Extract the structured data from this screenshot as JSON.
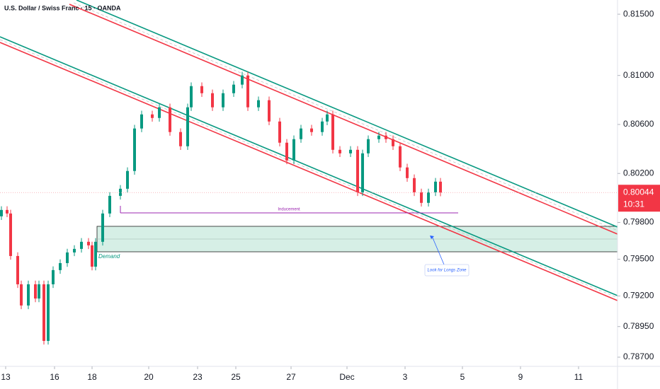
{
  "chart_data": {
    "type": "candlestick",
    "title": "U.S. Dollar / Swiss Franc · 15 · OANDA",
    "annotations": {
      "inducement": "Inducement",
      "demand": "Demand",
      "longs_zone": "Look for Longs Zone"
    },
    "last_price": 0.80044,
    "countdown": "10:31",
    "up_color": "#089981",
    "down_color": "#f23645",
    "xlim": [
      0,
      87.2
    ],
    "ylim": [
      0.78625,
      0.81616
    ],
    "xticks": [
      {
        "value": 0.8,
        "label": "13"
      },
      {
        "value": 7.7,
        "label": "16"
      },
      {
        "value": 13,
        "label": "18"
      },
      {
        "value": 21,
        "label": "20"
      },
      {
        "value": 27.9,
        "label": "23"
      },
      {
        "value": 33.3,
        "label": "25"
      },
      {
        "value": 41.1,
        "label": "27"
      },
      {
        "value": 49,
        "label": "Dec"
      },
      {
        "value": 57.2,
        "label": "3"
      },
      {
        "value": 65.3,
        "label": "5"
      },
      {
        "value": 73.5,
        "label": "9"
      },
      {
        "value": 81.7,
        "label": "11"
      }
    ],
    "yticks": [
      {
        "value": 0.815,
        "label": "0.81500"
      },
      {
        "value": 0.81,
        "label": "0.81000"
      },
      {
        "value": 0.806,
        "label": "0.80600"
      },
      {
        "value": 0.802,
        "label": "0.80200"
      },
      {
        "value": 0.798,
        "label": "0.79800"
      },
      {
        "value": 0.795,
        "label": "0.79500"
      },
      {
        "value": 0.792,
        "label": "0.79200"
      },
      {
        "value": 0.7895,
        "label": "0.78950"
      },
      {
        "value": 0.787,
        "label": "0.78700"
      }
    ],
    "x": [
      0.2,
      1.0,
      1.5,
      2.5,
      3.0,
      4.0,
      5.0,
      5.5,
      6.2,
      6.8,
      7.5,
      8.5,
      9.5,
      10.5,
      11.5,
      12.5,
      13.0,
      13.5,
      14.5,
      15.5,
      17.0,
      18.0,
      19.0,
      20.0,
      21.5,
      22.5,
      24.0,
      25.5,
      26.5,
      27.0,
      28.5,
      30.0,
      31.5,
      33.0,
      34.2,
      35.0,
      36.5,
      38.0,
      39.5,
      40.5,
      41.5,
      42.5,
      44.0,
      45.5,
      46.2,
      47.0,
      48.0,
      49.5,
      50.5,
      51.2,
      52.0,
      53.5,
      54.5,
      55.5,
      56.5,
      57.5,
      58.5,
      59.5,
      60.5,
      61.5,
      62.2
    ],
    "open": [
      0.7985,
      0.79902,
      0.79873,
      0.79526,
      0.79295,
      0.79122,
      0.79295,
      0.79179,
      0.79295,
      0.78833,
      0.79295,
      0.79411,
      0.79468,
      0.79555,
      0.79584,
      0.79642,
      0.79613,
      0.79439,
      0.79642,
      0.79873,
      0.80017,
      0.80075,
      0.8022,
      0.80567,
      0.80682,
      0.80653,
      0.8074,
      0.80538,
      0.80422,
      0.8074,
      0.80913,
      0.80855,
      0.8074,
      0.80855,
      0.80925,
      0.81,
      0.8074,
      0.80798,
      0.80624,
      0.80451,
      0.80306,
      0.8048,
      0.80567,
      0.80538,
      0.80624,
      0.80682,
      0.80393,
      0.80364,
      0.80393,
      0.80046,
      0.80364,
      0.8048,
      0.80509,
      0.8048,
      0.80422,
      0.80249,
      0.80162,
      0.80046,
      0.7996,
      0.80046,
      0.80133
    ],
    "high": [
      0.79932,
      0.79932,
      0.79903,
      0.79556,
      0.79325,
      0.79325,
      0.79325,
      0.79325,
      0.79325,
      0.79325,
      0.79441,
      0.79498,
      0.79585,
      0.79614,
      0.79672,
      0.79672,
      0.79643,
      0.79672,
      0.79903,
      0.80047,
      0.80105,
      0.8025,
      0.80597,
      0.80712,
      0.80712,
      0.8077,
      0.8077,
      0.80568,
      0.8077,
      0.80943,
      0.80943,
      0.80885,
      0.80885,
      0.80955,
      0.8103,
      0.8103,
      0.80828,
      0.80828,
      0.80654,
      0.80481,
      0.8051,
      0.80597,
      0.80597,
      0.80654,
      0.80712,
      0.80712,
      0.80423,
      0.80423,
      0.80423,
      0.80394,
      0.8051,
      0.80539,
      0.80539,
      0.8051,
      0.80452,
      0.80279,
      0.80192,
      0.80076,
      0.80076,
      0.80163,
      0.80163
    ],
    "low": [
      0.7982,
      0.79843,
      0.79496,
      0.79265,
      0.79092,
      0.79092,
      0.79149,
      0.79149,
      0.78803,
      0.78803,
      0.79265,
      0.79381,
      0.79438,
      0.79525,
      0.79554,
      0.79583,
      0.79409,
      0.79409,
      0.79612,
      0.79843,
      0.79987,
      0.80045,
      0.8019,
      0.80537,
      0.80623,
      0.80623,
      0.80508,
      0.80392,
      0.80392,
      0.8071,
      0.80825,
      0.8071,
      0.8071,
      0.80825,
      0.80895,
      0.8071,
      0.8071,
      0.80594,
      0.80421,
      0.80276,
      0.80276,
      0.8045,
      0.80508,
      0.80508,
      0.80594,
      0.80363,
      0.80334,
      0.80334,
      0.80016,
      0.80016,
      0.80334,
      0.8045,
      0.8045,
      0.80392,
      0.80219,
      0.80132,
      0.80016,
      0.7993,
      0.7993,
      0.80016,
      0.80014
    ],
    "close": [
      0.79902,
      0.79873,
      0.79526,
      0.79295,
      0.79122,
      0.79295,
      0.79179,
      0.79295,
      0.78833,
      0.79295,
      0.79411,
      0.79468,
      0.79555,
      0.79584,
      0.79642,
      0.79613,
      0.79439,
      0.79642,
      0.79873,
      0.80017,
      0.80075,
      0.8022,
      0.80567,
      0.80682,
      0.80653,
      0.8074,
      0.80538,
      0.80422,
      0.8074,
      0.80913,
      0.80855,
      0.8074,
      0.80855,
      0.80925,
      0.81,
      0.8074,
      0.80798,
      0.80624,
      0.80451,
      0.80306,
      0.8048,
      0.80567,
      0.80538,
      0.80624,
      0.80682,
      0.80393,
      0.80364,
      0.80393,
      0.80046,
      0.80364,
      0.8048,
      0.80509,
      0.8048,
      0.80422,
      0.80249,
      0.80162,
      0.80046,
      0.7996,
      0.80046,
      0.80133,
      0.80044
    ]
  }
}
